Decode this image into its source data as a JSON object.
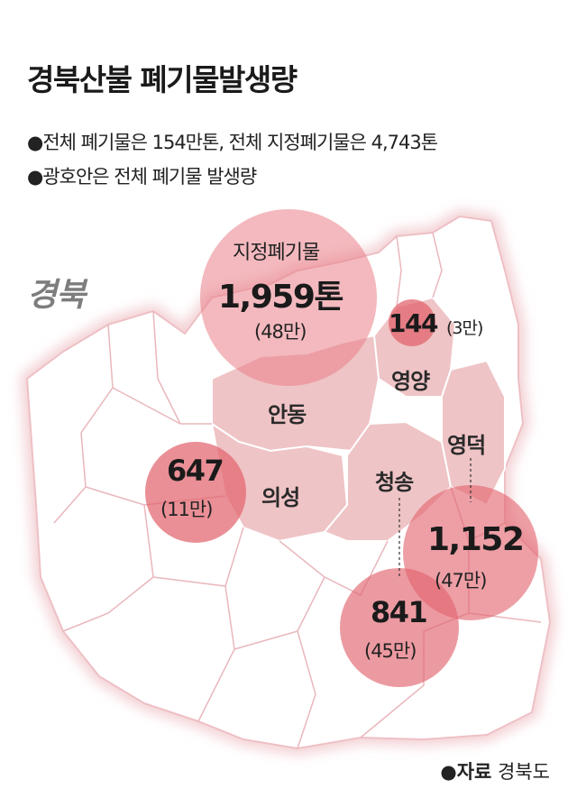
{
  "header": {
    "title": "경북산불 폐기물발생량",
    "notes": [
      "●전체 폐기물은 154만톤, 전체 지정폐기물은 4,743톤",
      "●광호안은 전체 폐기물 발생량"
    ]
  },
  "map": {
    "province_label": "경북",
    "regions": [
      "안동",
      "의성",
      "청송",
      "영양",
      "영덕"
    ],
    "designated_waste_label": "지정폐기물",
    "designated_waste_value": "1,959톤",
    "designated_waste_total": "(48만)",
    "bubbles": [
      {
        "region": "영양",
        "value": "144",
        "total": "(3만)"
      },
      {
        "region": "의성",
        "value": "647",
        "total": "(11만)"
      },
      {
        "region": "영덕",
        "value": "1,152",
        "total": "(47만)"
      },
      {
        "region": "청송",
        "value": "841",
        "total": "(45만)"
      }
    ]
  },
  "source": {
    "key": "●자료",
    "value": "경북도"
  },
  "colors": {
    "highlight_region": "#efc4c6",
    "map_border": "#f0c8cc",
    "bubble_fill": "#e97880",
    "title_text": "#1a1a1a",
    "province_label": "#7d7d7d"
  }
}
